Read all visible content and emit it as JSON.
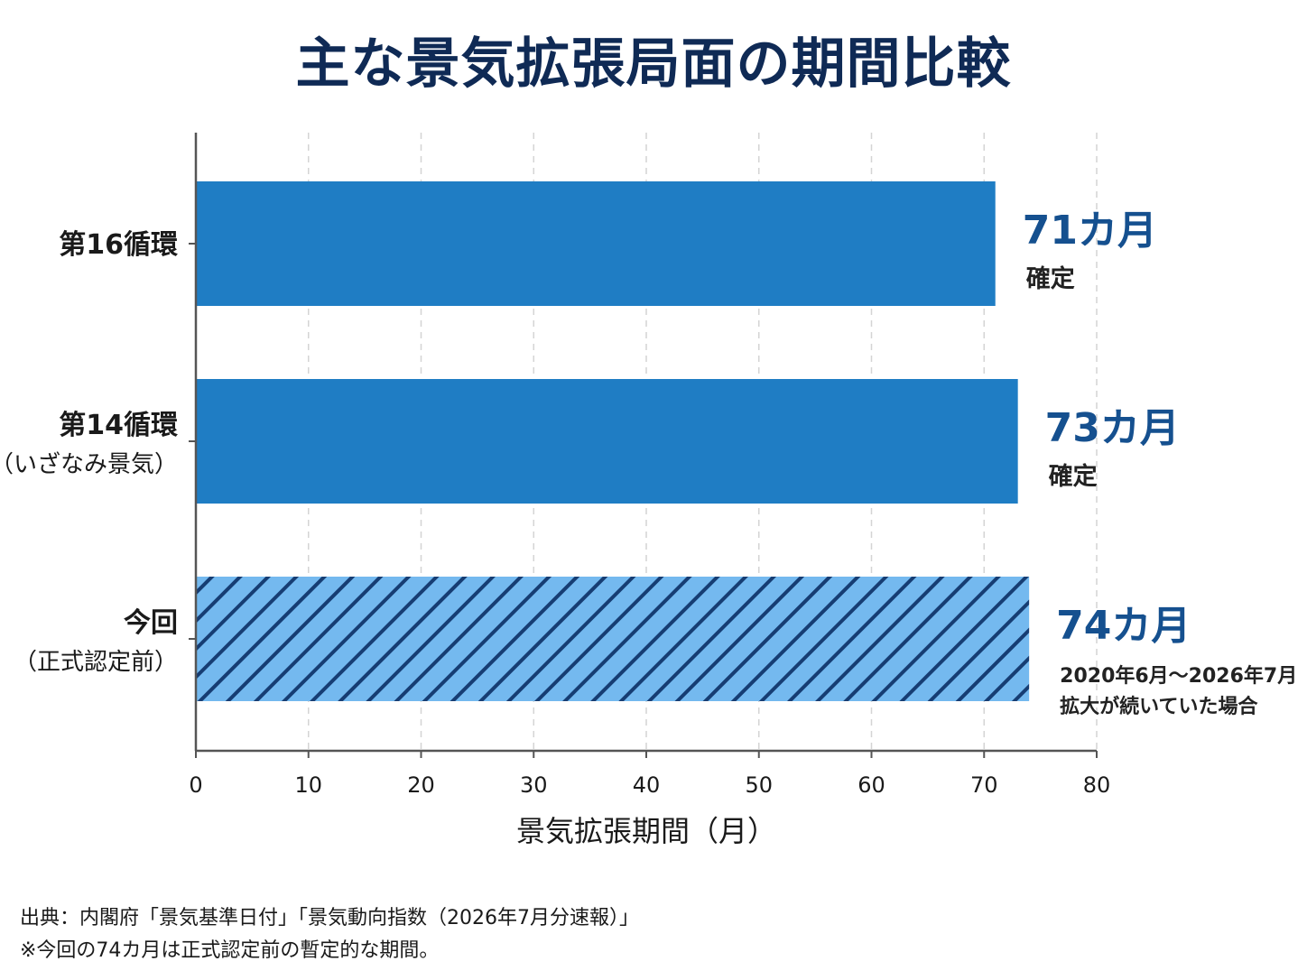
{
  "title": "主な景気拡張局面の期間比較",
  "chart_data": {
    "type": "bar",
    "orientation": "horizontal",
    "xlabel": "景気拡張期間（月）",
    "xlim": [
      0,
      80
    ],
    "xticks": [
      0,
      10,
      20,
      30,
      40,
      50,
      60,
      70,
      80
    ],
    "grid": true,
    "bars": [
      {
        "category_lines": [
          "第16循環"
        ],
        "value": 71,
        "value_label": "71カ月",
        "note_lines": [
          "確定"
        ],
        "style": "solid",
        "color": "#1f7dc4"
      },
      {
        "category_lines": [
          "第14循環",
          "（いざなみ景気）"
        ],
        "value": 73,
        "value_label": "73カ月",
        "note_lines": [
          "確定"
        ],
        "style": "solid",
        "color": "#1f7dc4"
      },
      {
        "category_lines": [
          "今回",
          "（正式認定前）"
        ],
        "value": 74,
        "value_label": "74カ月",
        "note_lines": [
          "2020年6月～2026年7月",
          "拡大が続いていた場合"
        ],
        "style": "hatched",
        "color": "#74b9ef",
        "hatch_color": "#163d73"
      }
    ]
  },
  "colors": {
    "title": "#0f2a55",
    "value_label": "#15508f",
    "axis": "#555555",
    "grid": "#d4d4d4"
  },
  "footer": {
    "source": "出典：内閣府「景気基準日付」「景気動向指数（2026年7月分速報）」",
    "note": "※今回の74カ月は正式認定前の暫定的な期間。"
  }
}
